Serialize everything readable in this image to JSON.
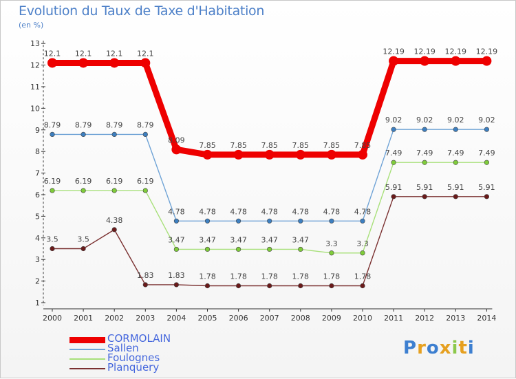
{
  "title": "Evolution du Taux de Taxe d'Habitation",
  "unit_label": "(en %)",
  "logo": {
    "text": "Proxiti",
    "letters": [
      {
        "ch": "P",
        "color": "#3d7fd0"
      },
      {
        "ch": "r",
        "color": "#e6a020"
      },
      {
        "ch": "o",
        "color": "#3d7fd0"
      },
      {
        "ch": "x",
        "color": "#e6a020"
      },
      {
        "ch": "i",
        "color": "#8cc84b"
      },
      {
        "ch": "t",
        "color": "#e6a020"
      },
      {
        "ch": "i",
        "color": "#3d7fd0"
      }
    ]
  },
  "chart_data": {
    "type": "line",
    "title": "Evolution du Taux de Taxe d'Habitation",
    "ylabel": "(en %)",
    "xlabel": "",
    "ylim": [
      1,
      13
    ],
    "yticks": [
      1,
      2,
      3,
      4,
      5,
      6,
      7,
      8,
      9,
      10,
      11,
      12,
      13
    ],
    "x": [
      "2000",
      "2001",
      "2002",
      "2003",
      "2004",
      "2005",
      "2006",
      "2007",
      "2008",
      "2009",
      "2010",
      "2011",
      "2012",
      "2013",
      "2014"
    ],
    "grid": false,
    "legend_position": "bottom-left",
    "series": [
      {
        "name": "CORMOLAIN",
        "color": "#ee0000",
        "marker_color": "#ee0000",
        "thick": true,
        "values": [
          12.1,
          12.1,
          12.1,
          12.1,
          8.09,
          7.85,
          7.85,
          7.85,
          7.85,
          7.85,
          7.85,
          12.19,
          12.19,
          12.19,
          12.19
        ],
        "labels": [
          "12.1",
          "12.1",
          "12.1",
          "12.1",
          "8.09",
          "7.85",
          "7.85",
          "7.85",
          "7.85",
          "7.85",
          "7.85",
          "12.19",
          "12.19",
          "12.19",
          "12.19"
        ]
      },
      {
        "name": "Sallen",
        "color": "#6fa3d6",
        "marker_color": "#3d7fc0",
        "thick": false,
        "values": [
          8.79,
          8.79,
          8.79,
          8.79,
          4.78,
          4.78,
          4.78,
          4.78,
          4.78,
          4.78,
          4.78,
          9.02,
          9.02,
          9.02,
          9.02
        ],
        "labels": [
          "8.79",
          "8.79",
          "8.79",
          "8.79",
          "4.78",
          "4.78",
          "4.78",
          "4.78",
          "4.78",
          "4.78",
          "4.78",
          "9.02",
          "9.02",
          "9.02",
          "9.02"
        ]
      },
      {
        "name": "Foulognes",
        "color": "#a8e07a",
        "marker_color": "#7fcc3a",
        "thick": false,
        "values": [
          6.19,
          6.19,
          6.19,
          6.19,
          3.47,
          3.47,
          3.47,
          3.47,
          3.47,
          3.3,
          3.3,
          7.49,
          7.49,
          7.49,
          7.49
        ],
        "labels": [
          "6.19",
          "6.19",
          "6.19",
          "6.19",
          "3.47",
          "3.47",
          "3.47",
          "3.47",
          "3.47",
          "3.3",
          "3.3",
          "7.49",
          "7.49",
          "7.49",
          "7.49"
        ]
      },
      {
        "name": "Planquery",
        "color": "#7a3030",
        "marker_color": "#6a1a1a",
        "thick": false,
        "values": [
          3.5,
          3.5,
          4.38,
          1.83,
          1.83,
          1.78,
          1.78,
          1.78,
          1.78,
          1.78,
          1.78,
          5.91,
          5.91,
          5.91,
          5.91
        ],
        "labels": [
          "3.5",
          "3.5",
          "4.38",
          "1.83",
          "1.83",
          "1.78",
          "1.78",
          "1.78",
          "1.78",
          "1.78",
          "1.78",
          "5.91",
          "5.91",
          "5.91",
          "5.91"
        ]
      }
    ]
  }
}
